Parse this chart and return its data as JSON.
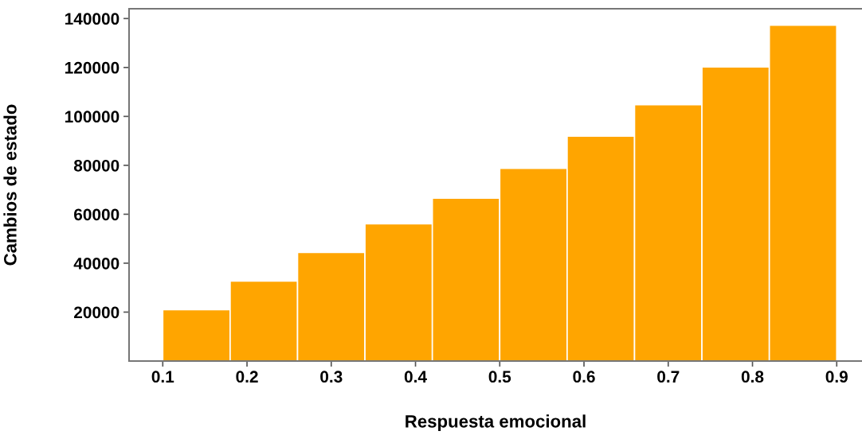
{
  "chart_data": {
    "type": "histogram",
    "xlabel": "Respuesta emocional",
    "ylabel": "Cambios de estado",
    "bins": [
      0.1,
      0.18,
      0.26,
      0.34,
      0.42,
      0.5,
      0.58,
      0.66,
      0.74,
      0.82,
      0.9
    ],
    "values": [
      21000,
      32700,
      44400,
      56100,
      66600,
      78800,
      91900,
      104800,
      120200,
      137300
    ],
    "color": "#ffa500",
    "xlim": [
      0.06,
      0.93
    ],
    "xticks": [
      0.1,
      0.2,
      0.3,
      0.4,
      0.5,
      0.6,
      0.7,
      0.8,
      0.9
    ],
    "ylim": [
      0,
      144000
    ],
    "yticks": [
      20000,
      40000,
      60000,
      80000,
      100000,
      120000,
      140000
    ],
    "grid": false
  }
}
